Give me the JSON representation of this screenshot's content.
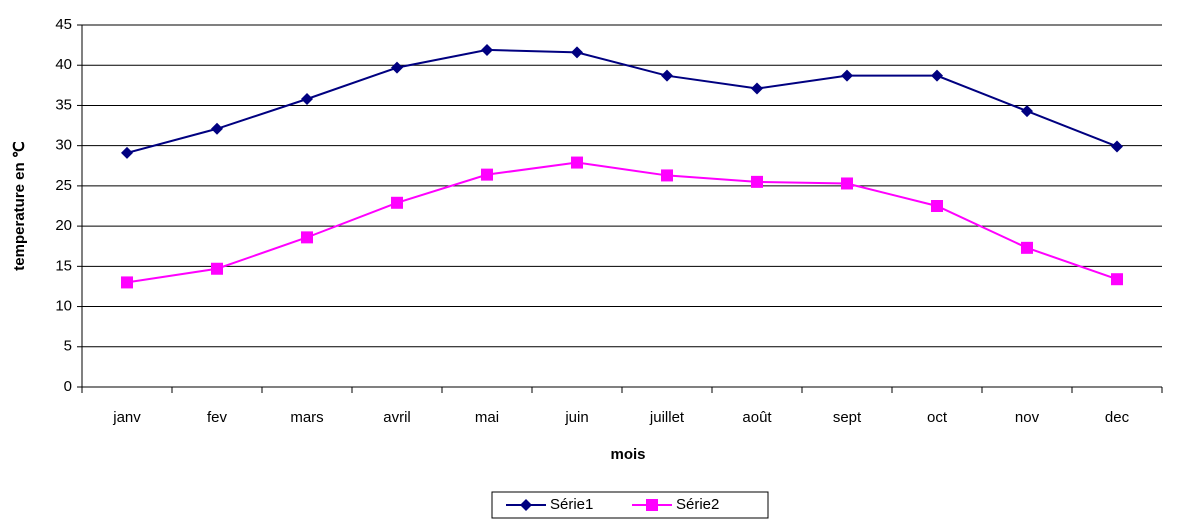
{
  "chart_data": {
    "type": "line",
    "x_label": "mois",
    "y_label": "temperature en ℃",
    "categories": [
      "janv",
      "fev",
      "mars",
      "avril",
      "mai",
      "juin",
      "juillet",
      "août",
      "sept",
      "oct",
      "nov",
      "dec"
    ],
    "series": [
      {
        "name": "Série1",
        "color": "#000080",
        "marker": "diamond",
        "values": [
          29.1,
          32.1,
          35.8,
          39.7,
          41.9,
          41.6,
          38.7,
          37.1,
          38.7,
          38.7,
          34.3,
          29.9
        ]
      },
      {
        "name": "Série2",
        "color": "#ff00ff",
        "marker": "square",
        "values": [
          13.0,
          14.7,
          18.6,
          22.9,
          26.4,
          27.9,
          26.3,
          25.5,
          25.3,
          22.5,
          17.3,
          13.4
        ]
      }
    ],
    "ylim": [
      0,
      45
    ],
    "yticks": [
      0,
      5,
      10,
      15,
      20,
      25,
      30,
      35,
      40,
      45
    ],
    "grid": true,
    "legend": "bottom"
  }
}
